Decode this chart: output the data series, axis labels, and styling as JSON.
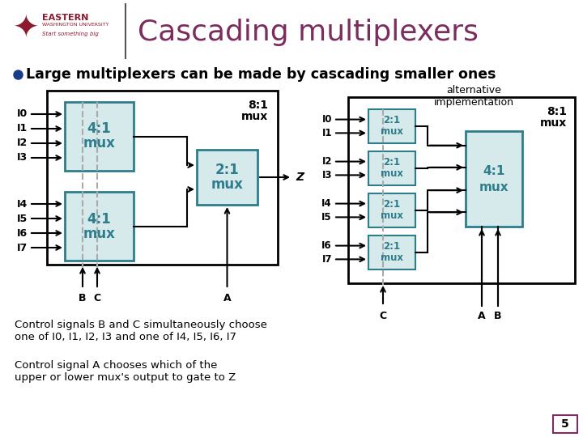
{
  "title": "Cascading multiplexers",
  "title_color": "#7b2d5e",
  "bullet": "Large multiplexers can be made by cascading smaller ones",
  "bg_color": "#ffffff",
  "mux_fill": "#d6eaeb",
  "mux_text_color": "#2e7d8c",
  "outline_color": "#2e7d8c",
  "big_box_color": "#000000",
  "arrow_color": "#000000",
  "dashed_color": "#aaaaaa",
  "text_color": "#000000",
  "slide_num": "5",
  "slide_num_border": "#7b2d5e",
  "control_text1_bold": "Control signals B and C simultaneously choose\none of I0, I1, I2, I3 and one of I4, I5, I6, I7",
  "control_text2": "Control signal A chooses which of the\nupper or lower mux's output to gate to Z",
  "alt_text": "alternative\nimplementation"
}
